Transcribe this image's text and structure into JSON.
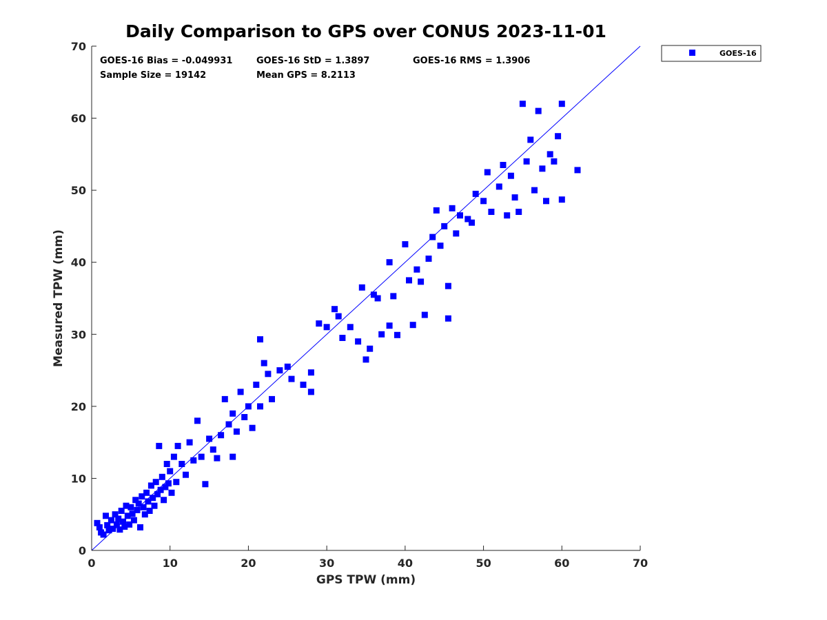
{
  "chart_data": {
    "type": "scatter",
    "title": "Daily Comparison to GPS over CONUS 2023-11-01",
    "xlabel": "GPS TPW (mm)",
    "ylabel": "Measured TPW (mm)",
    "xlim": [
      0,
      70
    ],
    "ylim": [
      0,
      70
    ],
    "xticks": [
      0,
      10,
      20,
      30,
      40,
      50,
      60,
      70
    ],
    "yticks": [
      0,
      10,
      20,
      30,
      40,
      50,
      60,
      70
    ],
    "grid": false,
    "legend_position": "outside-top-right",
    "reference_line": {
      "x": [
        0,
        70
      ],
      "y": [
        0,
        70
      ],
      "color": "#0000ff"
    },
    "stats": [
      {
        "label": "GOES-16 Bias = -0.049931"
      },
      {
        "label": "GOES-16 StD = 1.3897"
      },
      {
        "label": "GOES-16 RMS = 1.3906"
      },
      {
        "label": "Sample Size = 19142"
      },
      {
        "label": "Mean GPS = 8.2113"
      }
    ],
    "series": [
      {
        "name": "GOES-16",
        "color": "#0000ff",
        "marker": "square",
        "points": [
          [
            0.7,
            3.8
          ],
          [
            1.0,
            3.2
          ],
          [
            1.2,
            2.5
          ],
          [
            1.5,
            2.2
          ],
          [
            1.8,
            4.8
          ],
          [
            2.0,
            3.5
          ],
          [
            2.2,
            2.8
          ],
          [
            2.5,
            4.2
          ],
          [
            2.7,
            3.0
          ],
          [
            3.0,
            5.0
          ],
          [
            3.2,
            3.6
          ],
          [
            3.4,
            4.4
          ],
          [
            3.6,
            2.9
          ],
          [
            3.8,
            5.5
          ],
          [
            4.0,
            4.0
          ],
          [
            4.2,
            3.3
          ],
          [
            4.4,
            6.2
          ],
          [
            4.6,
            4.8
          ],
          [
            4.8,
            3.6
          ],
          [
            5.0,
            6.0
          ],
          [
            5.2,
            5.1
          ],
          [
            5.4,
            4.2
          ],
          [
            5.6,
            7.0
          ],
          [
            5.8,
            5.6
          ],
          [
            6.0,
            6.5
          ],
          [
            6.2,
            3.2
          ],
          [
            6.4,
            7.5
          ],
          [
            6.6,
            6.0
          ],
          [
            6.8,
            5.0
          ],
          [
            7.0,
            8.0
          ],
          [
            7.2,
            6.8
          ],
          [
            7.4,
            5.5
          ],
          [
            7.6,
            9.0
          ],
          [
            7.8,
            7.3
          ],
          [
            8.0,
            6.2
          ],
          [
            8.2,
            9.5
          ],
          [
            8.4,
            7.8
          ],
          [
            8.6,
            14.5
          ],
          [
            8.8,
            8.4
          ],
          [
            9.0,
            10.2
          ],
          [
            9.2,
            7.0
          ],
          [
            9.4,
            8.8
          ],
          [
            9.6,
            12.0
          ],
          [
            9.8,
            9.3
          ],
          [
            10.0,
            11.0
          ],
          [
            10.2,
            8.0
          ],
          [
            10.5,
            13.0
          ],
          [
            10.8,
            9.5
          ],
          [
            11.0,
            14.5
          ],
          [
            11.5,
            12.0
          ],
          [
            12.0,
            10.5
          ],
          [
            12.5,
            15.0
          ],
          [
            13.0,
            12.5
          ],
          [
            13.5,
            18.0
          ],
          [
            14.0,
            13.0
          ],
          [
            14.5,
            9.2
          ],
          [
            15.0,
            15.5
          ],
          [
            15.5,
            14.0
          ],
          [
            16.0,
            12.8
          ],
          [
            16.5,
            16.0
          ],
          [
            17.0,
            21.0
          ],
          [
            17.5,
            17.5
          ],
          [
            18.0,
            13.0
          ],
          [
            18.0,
            19.0
          ],
          [
            18.5,
            16.5
          ],
          [
            19.0,
            22.0
          ],
          [
            19.5,
            18.5
          ],
          [
            20.0,
            20.0
          ],
          [
            20.5,
            17.0
          ],
          [
            21.0,
            23.0
          ],
          [
            21.5,
            29.3
          ],
          [
            21.5,
            20.0
          ],
          [
            22.0,
            26.0
          ],
          [
            22.5,
            24.5
          ],
          [
            23.0,
            21.0
          ],
          [
            24.0,
            25.0
          ],
          [
            25.0,
            25.5
          ],
          [
            25.5,
            23.8
          ],
          [
            27.0,
            23.0
          ],
          [
            28.0,
            22.0
          ],
          [
            28.0,
            24.7
          ],
          [
            29.0,
            31.5
          ],
          [
            30.0,
            31.0
          ],
          [
            31.0,
            33.5
          ],
          [
            31.5,
            32.5
          ],
          [
            32.0,
            29.5
          ],
          [
            33.0,
            31.0
          ],
          [
            34.0,
            29.0
          ],
          [
            34.5,
            36.5
          ],
          [
            35.0,
            26.5
          ],
          [
            35.5,
            28.0
          ],
          [
            36.0,
            35.5
          ],
          [
            36.5,
            35.0
          ],
          [
            37.0,
            30.0
          ],
          [
            38.0,
            40.0
          ],
          [
            38.0,
            31.2
          ],
          [
            38.5,
            35.3
          ],
          [
            39.0,
            29.9
          ],
          [
            40.0,
            42.5
          ],
          [
            40.5,
            37.5
          ],
          [
            41.0,
            31.3
          ],
          [
            41.5,
            39.0
          ],
          [
            42.0,
            37.3
          ],
          [
            42.5,
            32.7
          ],
          [
            43.0,
            40.5
          ],
          [
            43.5,
            43.5
          ],
          [
            44.0,
            47.2
          ],
          [
            44.5,
            42.3
          ],
          [
            45.0,
            45.0
          ],
          [
            45.5,
            36.7
          ],
          [
            45.5,
            32.2
          ],
          [
            46.0,
            47.5
          ],
          [
            46.5,
            44.0
          ],
          [
            47.0,
            46.5
          ],
          [
            48.0,
            46.0
          ],
          [
            48.5,
            45.5
          ],
          [
            49.0,
            49.5
          ],
          [
            50.0,
            48.5
          ],
          [
            50.5,
            52.5
          ],
          [
            51.0,
            47.0
          ],
          [
            52.0,
            50.5
          ],
          [
            52.5,
            53.5
          ],
          [
            53.0,
            46.5
          ],
          [
            53.5,
            52.0
          ],
          [
            54.0,
            49.0
          ],
          [
            54.5,
            47.0
          ],
          [
            55.0,
            62.0
          ],
          [
            55.5,
            54.0
          ],
          [
            56.0,
            57.0
          ],
          [
            56.5,
            50.0
          ],
          [
            57.0,
            61.0
          ],
          [
            57.5,
            53.0
          ],
          [
            58.0,
            48.5
          ],
          [
            58.5,
            55.0
          ],
          [
            59.0,
            54.0
          ],
          [
            59.5,
            57.5
          ],
          [
            60.0,
            62.0
          ],
          [
            60.0,
            48.7
          ],
          [
            62.0,
            52.8
          ]
        ]
      }
    ]
  }
}
